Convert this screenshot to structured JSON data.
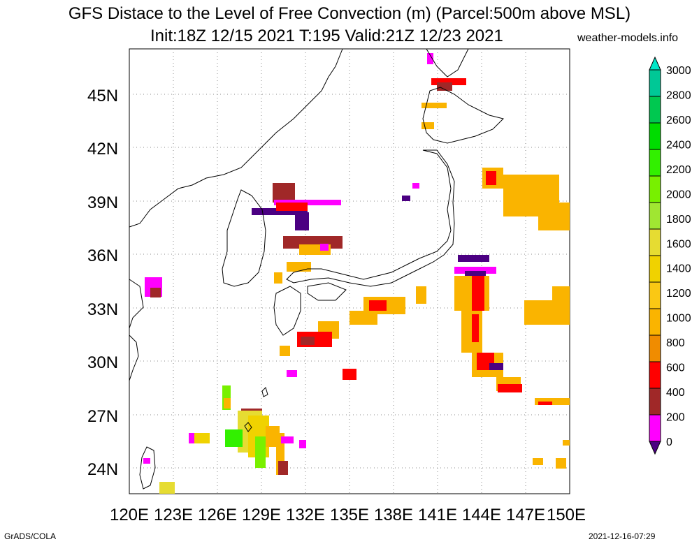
{
  "title": {
    "line1": "GFS Distace to the Level of Free Convection (m) (Parcel:500m above MSL)",
    "line2": "Init:18Z 12/15 2021 T:195 Valid:21Z 12/23 2021",
    "site": "weather-models.info"
  },
  "footer": {
    "left": "GrADS/COLA",
    "right": "2021-12-16-07:29"
  },
  "map": {
    "lon_labels": [
      "120E",
      "123E",
      "126E",
      "129E",
      "132E",
      "135E",
      "138E",
      "141E",
      "144E",
      "147E",
      "150E"
    ],
    "lat_labels": [
      "45N",
      "42N",
      "39N",
      "36N",
      "33N",
      "30N",
      "27N",
      "24N"
    ],
    "lon_range": [
      120,
      150
    ],
    "lat_range": [
      22.5,
      47.5
    ],
    "grid": true
  },
  "colorbar": {
    "labels": [
      "3000",
      "2800",
      "2600",
      "2400",
      "2200",
      "2000",
      "1800",
      "1600",
      "1400",
      "1200",
      "1000",
      "800",
      "600",
      "400",
      "200",
      "0"
    ],
    "colors": [
      "#00e6c8",
      "#00c896",
      "#00c850",
      "#00dc00",
      "#32f000",
      "#78f000",
      "#a0e632",
      "#e6dc32",
      "#f0d200",
      "#fac814",
      "#fab400",
      "#f08c00",
      "#ff0000",
      "#a02828",
      "#ff00ff",
      "#4b0082"
    ]
  }
}
